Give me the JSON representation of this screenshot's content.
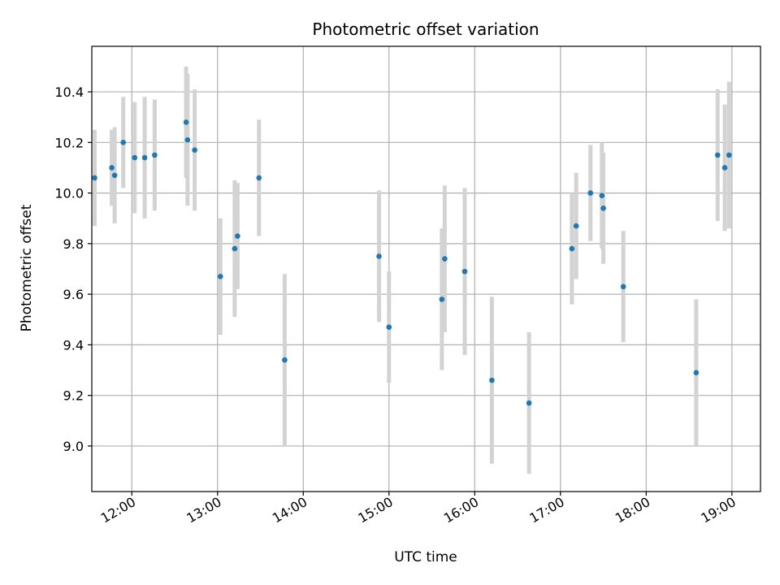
{
  "chart_data": {
    "type": "scatter",
    "title": "Photometric offset variation",
    "xlabel": "UTC time",
    "ylabel": "Photometric offset",
    "x_ticks": [
      "12:00",
      "13:00",
      "14:00",
      "15:00",
      "16:00",
      "17:00",
      "18:00",
      "19:00"
    ],
    "y_ticks": [
      "9.0",
      "9.2",
      "9.4",
      "9.6",
      "9.8",
      "10.0",
      "10.2",
      "10.4"
    ],
    "xlim": [
      "11:32",
      "19:20"
    ],
    "ylim": [
      8.82,
      10.58
    ],
    "grid": true,
    "colors": {
      "point": "#1f77b4",
      "errorbar": "#d3d3d3",
      "grid": "#b0b0b0"
    },
    "points": [
      {
        "x": "11:34",
        "y": 10.06,
        "err": 0.19
      },
      {
        "x": "11:46",
        "y": 10.1,
        "err": 0.15
      },
      {
        "x": "11:48",
        "y": 10.07,
        "err": 0.19
      },
      {
        "x": "11:54",
        "y": 10.2,
        "err": 0.18
      },
      {
        "x": "12:02",
        "y": 10.14,
        "err": 0.22
      },
      {
        "x": "12:09",
        "y": 10.14,
        "err": 0.24
      },
      {
        "x": "12:16",
        "y": 10.15,
        "err": 0.22
      },
      {
        "x": "12:38",
        "y": 10.28,
        "err": 0.22
      },
      {
        "x": "12:39",
        "y": 10.21,
        "err": 0.26
      },
      {
        "x": "12:44",
        "y": 10.17,
        "err": 0.24
      },
      {
        "x": "13:02",
        "y": 9.67,
        "err": 0.23
      },
      {
        "x": "13:12",
        "y": 9.78,
        "err": 0.27
      },
      {
        "x": "13:14",
        "y": 9.83,
        "err": 0.21
      },
      {
        "x": "13:29",
        "y": 10.06,
        "err": 0.23
      },
      {
        "x": "13:47",
        "y": 9.34,
        "err": 0.34
      },
      {
        "x": "14:53",
        "y": 9.75,
        "err": 0.26
      },
      {
        "x": "15:00",
        "y": 9.47,
        "err": 0.22
      },
      {
        "x": "15:37",
        "y": 9.58,
        "err": 0.28
      },
      {
        "x": "15:39",
        "y": 9.74,
        "err": 0.29
      },
      {
        "x": "15:53",
        "y": 9.69,
        "err": 0.33
      },
      {
        "x": "16:12",
        "y": 9.26,
        "err": 0.33
      },
      {
        "x": "16:38",
        "y": 9.17,
        "err": 0.28
      },
      {
        "x": "17:08",
        "y": 9.78,
        "err": 0.22
      },
      {
        "x": "17:11",
        "y": 9.87,
        "err": 0.21
      },
      {
        "x": "17:21",
        "y": 10.0,
        "err": 0.19
      },
      {
        "x": "17:29",
        "y": 9.99,
        "err": 0.21
      },
      {
        "x": "17:30",
        "y": 9.94,
        "err": 0.22
      },
      {
        "x": "17:44",
        "y": 9.63,
        "err": 0.22
      },
      {
        "x": "18:35",
        "y": 9.29,
        "err": 0.29
      },
      {
        "x": "18:50",
        "y": 10.15,
        "err": 0.26
      },
      {
        "x": "18:55",
        "y": 10.1,
        "err": 0.25
      },
      {
        "x": "18:58",
        "y": 10.15,
        "err": 0.29
      }
    ]
  }
}
